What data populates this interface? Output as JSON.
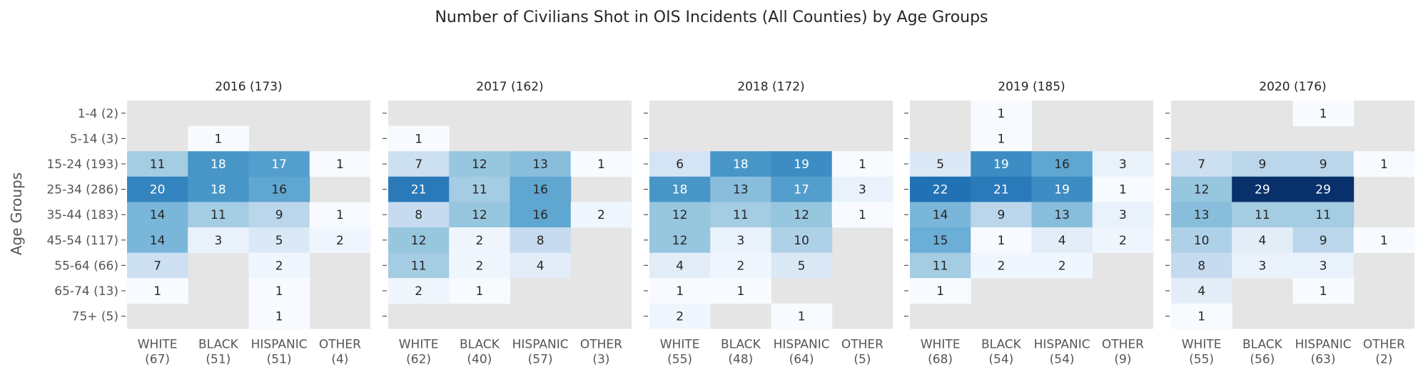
{
  "chart_data": {
    "type": "heatmap",
    "title": "Number of Civilians Shot in OIS Incidents (All Counties) by Age Groups",
    "ylabel": "Age Groups",
    "row_labels": [
      "1-4 (2)",
      "5-14 (3)",
      "15-24 (193)",
      "25-34 (286)",
      "35-44 (183)",
      "45-54 (117)",
      "55-64 (66)",
      "65-74 (13)",
      "75+ (5)"
    ],
    "color_scale": {
      "min": 1,
      "max": 29,
      "low_color": "#f7fbff",
      "high_color": "#08306b",
      "empty_color": "#e5e5e5"
    },
    "panels": [
      {
        "title": "2016 (173)",
        "columns": [
          {
            "name": "WHITE",
            "count": "(67)"
          },
          {
            "name": "BLACK",
            "count": "(51)"
          },
          {
            "name": "HISPANIC",
            "count": "(51)"
          },
          {
            "name": "OTHER",
            "count": "(4)"
          }
        ],
        "values": [
          [
            null,
            null,
            null,
            null
          ],
          [
            null,
            1,
            null,
            null
          ],
          [
            11,
            18,
            17,
            1
          ],
          [
            20,
            18,
            16,
            null
          ],
          [
            14,
            11,
            9,
            1
          ],
          [
            14,
            3,
            5,
            2
          ],
          [
            7,
            null,
            2,
            null
          ],
          [
            1,
            null,
            1,
            null
          ],
          [
            null,
            null,
            1,
            null
          ]
        ]
      },
      {
        "title": "2017 (162)",
        "columns": [
          {
            "name": "WHITE",
            "count": "(62)"
          },
          {
            "name": "BLACK",
            "count": "(40)"
          },
          {
            "name": "HISPANIC",
            "count": "(57)"
          },
          {
            "name": "OTHER",
            "count": "(3)"
          }
        ],
        "values": [
          [
            null,
            null,
            null,
            null
          ],
          [
            1,
            null,
            null,
            null
          ],
          [
            7,
            12,
            13,
            1
          ],
          [
            21,
            11,
            16,
            null
          ],
          [
            8,
            12,
            16,
            2
          ],
          [
            12,
            2,
            8,
            null
          ],
          [
            11,
            2,
            4,
            null
          ],
          [
            2,
            1,
            null,
            null
          ],
          [
            null,
            null,
            null,
            null
          ]
        ]
      },
      {
        "title": "2018 (172)",
        "columns": [
          {
            "name": "WHITE",
            "count": "(55)"
          },
          {
            "name": "BLACK",
            "count": "(48)"
          },
          {
            "name": "HISPANIC",
            "count": "(64)"
          },
          {
            "name": "OTHER",
            "count": "(5)"
          }
        ],
        "values": [
          [
            null,
            null,
            null,
            null
          ],
          [
            null,
            null,
            null,
            null
          ],
          [
            6,
            18,
            19,
            1
          ],
          [
            18,
            13,
            17,
            3
          ],
          [
            12,
            11,
            12,
            1
          ],
          [
            12,
            3,
            10,
            null
          ],
          [
            4,
            2,
            5,
            null
          ],
          [
            1,
            1,
            null,
            null
          ],
          [
            2,
            null,
            1,
            null
          ]
        ]
      },
      {
        "title": "2019 (185)",
        "columns": [
          {
            "name": "WHITE",
            "count": "(68)"
          },
          {
            "name": "BLACK",
            "count": "(54)"
          },
          {
            "name": "HISPANIC",
            "count": "(54)"
          },
          {
            "name": "OTHER",
            "count": "(9)"
          }
        ],
        "values": [
          [
            null,
            1,
            null,
            null
          ],
          [
            null,
            1,
            null,
            null
          ],
          [
            5,
            19,
            16,
            3
          ],
          [
            22,
            21,
            19,
            1
          ],
          [
            14,
            9,
            13,
            3
          ],
          [
            15,
            1,
            4,
            2
          ],
          [
            11,
            2,
            2,
            null
          ],
          [
            1,
            null,
            null,
            null
          ],
          [
            null,
            null,
            null,
            null
          ]
        ]
      },
      {
        "title": "2020 (176)",
        "columns": [
          {
            "name": "WHITE",
            "count": "(55)"
          },
          {
            "name": "BLACK",
            "count": "(56)"
          },
          {
            "name": "HISPANIC",
            "count": "(63)"
          },
          {
            "name": "OTHER",
            "count": "(2)"
          }
        ],
        "values": [
          [
            null,
            null,
            1,
            null
          ],
          [
            null,
            null,
            null,
            null
          ],
          [
            7,
            9,
            9,
            1
          ],
          [
            12,
            29,
            29,
            null
          ],
          [
            13,
            11,
            11,
            null
          ],
          [
            10,
            4,
            9,
            1
          ],
          [
            8,
            3,
            3,
            null
          ],
          [
            4,
            null,
            1,
            null
          ],
          [
            1,
            null,
            null,
            null
          ]
        ]
      }
    ]
  }
}
